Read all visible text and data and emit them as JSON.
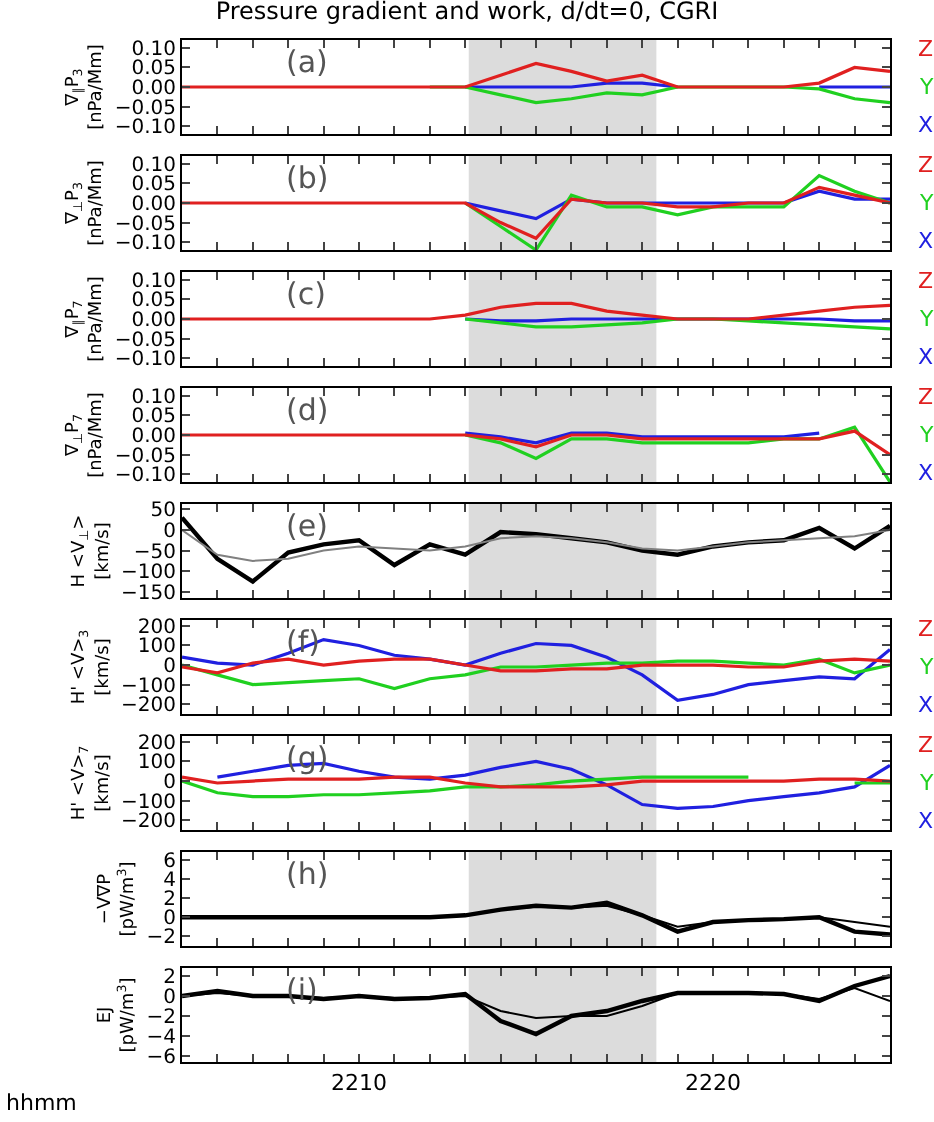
{
  "chart_data": [
    {
      "type": "line",
      "title": "Pressure gradient and work, d/dt=0, CGRI",
      "ylabel": "∇$_{∥}$P$_{3}$ [nPa/Mm]",
      "annotations": [
        "(a)"
      ],
      "tick_labels": "y",
      "x": [
        2205,
        2206,
        2207,
        2208,
        2209,
        2210,
        2211,
        2212,
        2213,
        2214,
        2215,
        2216,
        2217,
        2218,
        2219,
        2220,
        2221,
        2222,
        2223,
        2224,
        2225
      ],
      "xlim": [
        2205,
        2225
      ],
      "ylim": [
        -0.12,
        0.12
      ],
      "yticks": [
        {
          "value": -0.1,
          "label": "−0.10"
        },
        {
          "value": -0.05,
          "label": "−0.05"
        },
        {
          "value": 0,
          "label": "0.00"
        },
        {
          "value": 0.05,
          "label": "0.05"
        },
        {
          "value": 0.1,
          "label": "0.10"
        }
      ],
      "bands": [
        {
          "axis": "x",
          "from": 2213.1,
          "to": 2218.4,
          "color": "#dcdcdc"
        }
      ],
      "series": [
        {
          "name": "X",
          "color": "#2020e0",
          "values": [
            null,
            null,
            null,
            null,
            null,
            null,
            null,
            null,
            0,
            0,
            0,
            0,
            0.01,
            0.01,
            0,
            null,
            null,
            null,
            0,
            0,
            0
          ]
        },
        {
          "name": "Y",
          "color": "#20d020",
          "values": [
            null,
            null,
            null,
            null,
            null,
            null,
            null,
            0,
            0,
            -0.02,
            -0.04,
            -0.03,
            -0.015,
            -0.02,
            0,
            0,
            0,
            0,
            -0.005,
            -0.03,
            -0.04
          ]
        },
        {
          "name": "Z",
          "color": "#e02020",
          "values": [
            0,
            0,
            0,
            0,
            0,
            0,
            0,
            0,
            0,
            0.03,
            0.06,
            0.04,
            0.015,
            0.03,
            0,
            0,
            0,
            0,
            0.01,
            0.05,
            0.04
          ]
        }
      ]
    },
    {
      "type": "line",
      "ylabel": "∇$_{⊥}$P$_{3}$ [nPa/Mm]",
      "annotations": [
        "(b)"
      ],
      "tick_labels": "y",
      "x": [
        2205,
        2206,
        2207,
        2208,
        2209,
        2210,
        2211,
        2212,
        2213,
        2214,
        2215,
        2216,
        2217,
        2218,
        2219,
        2220,
        2221,
        2222,
        2223,
        2224,
        2225
      ],
      "xlim": [
        2205,
        2225
      ],
      "ylim": [
        -0.12,
        0.12
      ],
      "yticks": [
        {
          "value": -0.1,
          "label": "−0.10"
        },
        {
          "value": -0.05,
          "label": "−0.05"
        },
        {
          "value": 0,
          "label": "0.00"
        },
        {
          "value": 0.05,
          "label": "0.05"
        },
        {
          "value": 0.1,
          "label": "0.10"
        }
      ],
      "bands": [
        {
          "axis": "x",
          "from": 2213.1,
          "to": 2218.4,
          "color": "#dcdcdc"
        }
      ],
      "series": [
        {
          "name": "X",
          "color": "#2020e0",
          "values": [
            null,
            null,
            null,
            null,
            null,
            null,
            null,
            null,
            0,
            -0.02,
            -0.04,
            0.01,
            0,
            0,
            0,
            0,
            0,
            0,
            0.03,
            0.01,
            0.01
          ]
        },
        {
          "name": "Y",
          "color": "#20d020",
          "values": [
            null,
            null,
            null,
            null,
            null,
            null,
            null,
            null,
            0,
            -0.06,
            -0.12,
            0.02,
            -0.01,
            -0.01,
            -0.03,
            -0.01,
            -0.01,
            -0.01,
            0.07,
            0.03,
            0
          ]
        },
        {
          "name": "Z",
          "color": "#e02020",
          "values": [
            0,
            0,
            0,
            0,
            0,
            0,
            0,
            0,
            0,
            -0.05,
            -0.09,
            0.01,
            0,
            0,
            -0.01,
            -0.01,
            0,
            0,
            0.04,
            0.02,
            0
          ]
        }
      ]
    },
    {
      "type": "line",
      "ylabel": "∇$_{∥}$P$_{7}$ [nPa/Mm]",
      "annotations": [
        "(c)"
      ],
      "tick_labels": "y",
      "x": [
        2205,
        2206,
        2207,
        2208,
        2209,
        2210,
        2211,
        2212,
        2213,
        2214,
        2215,
        2216,
        2217,
        2218,
        2219,
        2220,
        2221,
        2222,
        2223,
        2224,
        2225
      ],
      "xlim": [
        2205,
        2225
      ],
      "ylim": [
        -0.12,
        0.12
      ],
      "yticks": [
        {
          "value": -0.1,
          "label": "−0.10"
        },
        {
          "value": -0.05,
          "label": "−0.05"
        },
        {
          "value": 0,
          "label": "0.00"
        },
        {
          "value": 0.05,
          "label": "0.05"
        },
        {
          "value": 0.1,
          "label": "0.10"
        }
      ],
      "bands": [
        {
          "axis": "x",
          "from": 2213.1,
          "to": 2218.4,
          "color": "#dcdcdc"
        }
      ],
      "series": [
        {
          "name": "X",
          "color": "#2020e0",
          "values": [
            null,
            null,
            null,
            null,
            null,
            null,
            null,
            null,
            0,
            -0.005,
            -0.005,
            0,
            0,
            0,
            0,
            0,
            0,
            0,
            0,
            -0.005,
            -0.005
          ]
        },
        {
          "name": "Y",
          "color": "#20d020",
          "values": [
            null,
            null,
            null,
            null,
            null,
            null,
            null,
            null,
            0,
            -0.01,
            -0.02,
            -0.02,
            -0.015,
            -0.01,
            0,
            0,
            -0.005,
            -0.01,
            -0.015,
            -0.02,
            -0.025
          ]
        },
        {
          "name": "Z",
          "color": "#e02020",
          "values": [
            0,
            0,
            0,
            0,
            0,
            0,
            0,
            0,
            0.01,
            0.03,
            0.04,
            0.04,
            0.02,
            0.01,
            0,
            0,
            0,
            0.01,
            0.02,
            0.03,
            0.035
          ]
        }
      ]
    },
    {
      "type": "line",
      "ylabel": "∇$_{⊥}$P$_{7}$ [nPa/Mm]",
      "annotations": [
        "(d)"
      ],
      "tick_labels": "y",
      "x": [
        2205,
        2206,
        2207,
        2208,
        2209,
        2210,
        2211,
        2212,
        2213,
        2214,
        2215,
        2216,
        2217,
        2218,
        2219,
        2220,
        2221,
        2222,
        2223,
        2224,
        2225
      ],
      "xlim": [
        2205,
        2225
      ],
      "ylim": [
        -0.12,
        0.12
      ],
      "yticks": [
        {
          "value": -0.1,
          "label": "−0.10"
        },
        {
          "value": -0.05,
          "label": "−0.05"
        },
        {
          "value": 0,
          "label": "0.00"
        },
        {
          "value": 0.05,
          "label": "0.05"
        },
        {
          "value": 0.1,
          "label": "0.10"
        }
      ],
      "bands": [
        {
          "axis": "x",
          "from": 2213.1,
          "to": 2218.4,
          "color": "#dcdcdc"
        }
      ],
      "series": [
        {
          "name": "X",
          "color": "#2020e0",
          "values": [
            null,
            null,
            null,
            null,
            null,
            null,
            null,
            null,
            0.005,
            -0.005,
            -0.02,
            0.005,
            0.005,
            -0.005,
            -0.005,
            -0.005,
            -0.005,
            -0.005,
            0.005,
            null,
            null
          ]
        },
        {
          "name": "Y",
          "color": "#20d020",
          "values": [
            null,
            null,
            null,
            null,
            null,
            null,
            null,
            null,
            0,
            -0.02,
            -0.06,
            -0.01,
            -0.01,
            -0.02,
            -0.02,
            -0.02,
            -0.02,
            -0.01,
            -0.01,
            0.02,
            -0.12
          ]
        },
        {
          "name": "Z",
          "color": "#e02020",
          "values": [
            0,
            0,
            0,
            0,
            0,
            0,
            0,
            0,
            0,
            -0.01,
            -0.03,
            0,
            0,
            -0.01,
            -0.01,
            -0.01,
            -0.01,
            -0.01,
            -0.01,
            0.01,
            -0.05
          ]
        }
      ]
    },
    {
      "type": "line",
      "ylabel": "H <V$_{⊥}$> [km/s]",
      "annotations": [
        "(e)"
      ],
      "tick_labels": "y",
      "x": [
        2205,
        2206,
        2207,
        2208,
        2209,
        2210,
        2211,
        2212,
        2213,
        2214,
        2215,
        2216,
        2217,
        2218,
        2219,
        2220,
        2221,
        2222,
        2223,
        2224,
        2225
      ],
      "xlim": [
        2205,
        2225
      ],
      "ylim": [
        -165,
        63
      ],
      "yticks": [
        {
          "value": -150,
          "label": "−150"
        },
        {
          "value": -100,
          "label": "−100"
        },
        {
          "value": -50,
          "label": "−50"
        },
        0,
        50
      ],
      "bands": [
        {
          "axis": "x",
          "from": 2213.1,
          "to": 2218.4,
          "color": "#dcdcdc"
        }
      ],
      "series": [
        {
          "color": "#000000",
          "values": [
            30,
            -70,
            -125,
            -55,
            -35,
            -25,
            -85,
            -35,
            -60,
            -5,
            -10,
            -20,
            -30,
            -50,
            -60,
            -40,
            -30,
            -25,
            5,
            -45,
            10
          ]
        },
        {
          "color": "#808080",
          "values": [
            0,
            -60,
            -75,
            -70,
            -50,
            -40,
            -45,
            -50,
            -40,
            -20,
            -15,
            -20,
            -30,
            -45,
            -50,
            -40,
            -30,
            -25,
            -20,
            -15,
            0
          ]
        }
      ]
    },
    {
      "type": "line",
      "ylabel": "H' <V>$_{3}$ [km/s]",
      "annotations": [
        "(f)"
      ],
      "tick_labels": "y",
      "x": [
        2205,
        2206,
        2207,
        2208,
        2209,
        2210,
        2211,
        2212,
        2213,
        2214,
        2215,
        2216,
        2217,
        2218,
        2219,
        2220,
        2221,
        2222,
        2223,
        2224,
        2225
      ],
      "xlim": [
        2205,
        2225
      ],
      "ylim": [
        -250,
        230
      ],
      "yticks": [
        {
          "value": -200,
          "label": "−200"
        },
        {
          "value": -100,
          "label": "−100"
        },
        0,
        100,
        200
      ],
      "bands": [
        {
          "axis": "x",
          "from": 2213.1,
          "to": 2218.4,
          "color": "#dcdcdc"
        }
      ],
      "series": [
        {
          "name": "X",
          "color": "#2020e0",
          "values": [
            40,
            10,
            0,
            60,
            130,
            100,
            50,
            30,
            0,
            60,
            110,
            100,
            40,
            -50,
            -180,
            -150,
            -100,
            -80,
            -60,
            -70,
            80
          ]
        },
        {
          "name": "Y",
          "color": "#20d020",
          "values": [
            0,
            -50,
            -100,
            -90,
            -80,
            -70,
            -120,
            -70,
            -50,
            -10,
            -10,
            0,
            10,
            10,
            20,
            20,
            10,
            0,
            30,
            -40,
            0
          ]
        },
        {
          "name": "Z",
          "color": "#e02020",
          "values": [
            -10,
            -40,
            10,
            30,
            0,
            20,
            30,
            30,
            0,
            -30,
            -30,
            -20,
            -20,
            0,
            0,
            0,
            -10,
            -10,
            20,
            30,
            20
          ]
        }
      ]
    },
    {
      "type": "line",
      "ylabel": "H' <V>$_{7}$ [km/s]",
      "annotations": [
        "(g)"
      ],
      "tick_labels": "y",
      "x": [
        2205,
        2206,
        2207,
        2208,
        2209,
        2210,
        2211,
        2212,
        2213,
        2214,
        2215,
        2216,
        2217,
        2218,
        2219,
        2220,
        2221,
        2222,
        2223,
        2224,
        2225
      ],
      "xlim": [
        2205,
        2225
      ],
      "ylim": [
        -250,
        230
      ],
      "yticks": [
        {
          "value": -200,
          "label": "−200"
        },
        {
          "value": -100,
          "label": "−100"
        },
        0,
        100,
        200
      ],
      "bands": [
        {
          "axis": "x",
          "from": 2213.1,
          "to": 2218.4,
          "color": "#dcdcdc"
        }
      ],
      "series": [
        {
          "name": "X",
          "color": "#2020e0",
          "values": [
            null,
            20,
            50,
            80,
            90,
            50,
            20,
            10,
            30,
            70,
            100,
            60,
            -20,
            -120,
            -140,
            -130,
            -100,
            -80,
            -60,
            -30,
            80
          ]
        },
        {
          "name": "Y",
          "color": "#20d020",
          "values": [
            0,
            -60,
            -80,
            -80,
            -70,
            -70,
            -60,
            -50,
            -30,
            -30,
            -20,
            0,
            10,
            20,
            20,
            20,
            20,
            null,
            null,
            -10,
            -10
          ]
        },
        {
          "name": "Z",
          "color": "#e02020",
          "values": [
            20,
            -10,
            0,
            10,
            10,
            10,
            20,
            20,
            -10,
            -30,
            -30,
            -30,
            -20,
            0,
            0,
            0,
            0,
            0,
            10,
            10,
            0
          ]
        }
      ]
    },
    {
      "type": "line",
      "ylabel": "−V∇P [pW/m$^{3}$]",
      "annotations": [
        "(h)"
      ],
      "tick_labels": "y",
      "x": [
        2205,
        2206,
        2207,
        2208,
        2209,
        2210,
        2211,
        2212,
        2213,
        2214,
        2215,
        2216,
        2217,
        2218,
        2219,
        2220,
        2221,
        2222,
        2223,
        2224,
        2225
      ],
      "xlim": [
        2205,
        2225
      ],
      "ylim": [
        -3,
        6.8
      ],
      "yticks": [
        {
          "value": -2,
          "label": "−2"
        },
        0,
        2,
        4,
        6
      ],
      "bands": [
        {
          "axis": "x",
          "from": 2213.1,
          "to": 2218.4,
          "color": "#dcdcdc"
        }
      ],
      "series": [
        {
          "color": "#000000",
          "values": [
            0,
            0,
            0,
            0,
            0,
            0,
            0,
            0,
            0.2,
            0.8,
            1.2,
            1.0,
            1.5,
            0.2,
            -1.5,
            -0.5,
            -0.3,
            -0.2,
            0,
            -1.5,
            -1.8
          ]
        },
        {
          "color": "#000000",
          "values": [
            0,
            0,
            0,
            0,
            0,
            0,
            0,
            0,
            0.2,
            0.8,
            1.1,
            1.0,
            1.2,
            0.2,
            -1.0,
            -0.5,
            -0.3,
            -0.2,
            0,
            -0.5,
            -1.0
          ]
        }
      ]
    },
    {
      "type": "line",
      "ylabel": "EJ [pW/m$^{3}$]",
      "xlabel": "hhmm",
      "annotations": [
        "(i)"
      ],
      "x": [
        2205,
        2206,
        2207,
        2208,
        2209,
        2210,
        2211,
        2212,
        2213,
        2214,
        2215,
        2216,
        2217,
        2218,
        2219,
        2220,
        2221,
        2222,
        2223,
        2224,
        2225
      ],
      "xlim": [
        2205,
        2225
      ],
      "ylim": [
        -6.6,
        2.8
      ],
      "xticks": [
        {
          "value": 2206,
          "label": null
        },
        {
          "value": 2207,
          "label": null
        },
        {
          "value": 2208,
          "label": null
        },
        {
          "value": 2209,
          "label": null
        },
        2210,
        {
          "value": 2211,
          "label": null
        },
        {
          "value": 2212,
          "label": null
        },
        {
          "value": 2213,
          "label": null
        },
        {
          "value": 2214,
          "label": null
        },
        {
          "value": 2215,
          "label": null
        },
        {
          "value": 2216,
          "label": null
        },
        {
          "value": 2217,
          "label": null
        },
        {
          "value": 2218,
          "label": null
        },
        {
          "value": 2219,
          "label": null
        },
        2220,
        {
          "value": 2221,
          "label": null
        },
        {
          "value": 2222,
          "label": null
        },
        {
          "value": 2223,
          "label": null
        },
        {
          "value": 2224,
          "label": null
        }
      ],
      "yticks": [
        {
          "value": -6,
          "label": "−6"
        },
        {
          "value": -4,
          "label": "−4"
        },
        {
          "value": -2,
          "label": "−2"
        },
        0,
        2
      ],
      "bands": [
        {
          "axis": "x",
          "from": 2213.1,
          "to": 2218.4,
          "color": "#dcdcdc"
        }
      ],
      "series": [
        {
          "color": "#000000",
          "values": [
            0,
            0.5,
            0,
            0,
            -0.3,
            0,
            -0.3,
            -0.2,
            0.2,
            -2.5,
            -3.8,
            -2,
            -1.5,
            -0.5,
            0.3,
            0.3,
            0.3,
            0.2,
            -0.5,
            1.0,
            2.0
          ]
        },
        {
          "color": "#000000",
          "values": [
            0,
            0.3,
            0,
            0,
            -0.2,
            0,
            -0.2,
            -0.2,
            0,
            -1.5,
            -2.2,
            -2,
            -2,
            -1,
            0.3,
            0.3,
            0.3,
            0.2,
            -0.3,
            0.8,
            -0.5
          ]
        }
      ]
    }
  ]
}
